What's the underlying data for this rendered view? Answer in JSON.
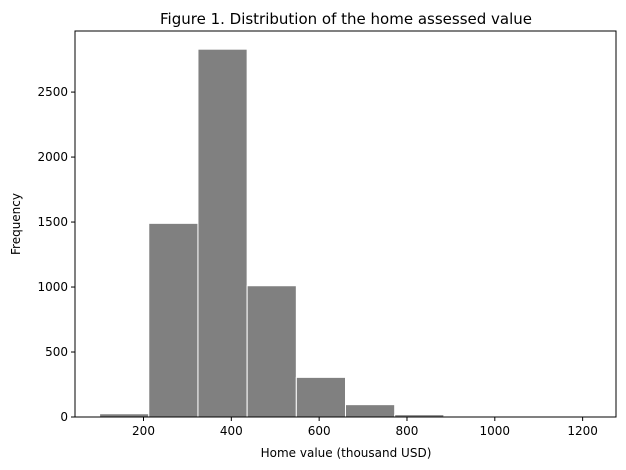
{
  "chart_data": {
    "type": "bar",
    "subtype": "histogram",
    "title": "Figure 1. Distribution of the home assessed value",
    "xlabel": "Home value (thousand USD)",
    "ylabel": "Frequency",
    "bins": [
      {
        "start": 100,
        "end": 212,
        "count": 25
      },
      {
        "start": 212,
        "end": 324,
        "count": 1490
      },
      {
        "start": 324,
        "end": 436,
        "count": 2830
      },
      {
        "start": 436,
        "end": 548,
        "count": 1010
      },
      {
        "start": 548,
        "end": 660,
        "count": 305
      },
      {
        "start": 660,
        "end": 772,
        "count": 95
      },
      {
        "start": 772,
        "end": 884,
        "count": 18
      },
      {
        "start": 884,
        "end": 996,
        "count": 2
      },
      {
        "start": 996,
        "end": 1108,
        "count": 1
      },
      {
        "start": 1108,
        "end": 1220,
        "count": 1
      }
    ],
    "xlim": [
      44,
      1276
    ],
    "ylim": [
      0,
      2970
    ],
    "xticks": [
      200,
      400,
      600,
      800,
      1000,
      1200
    ],
    "yticks": [
      0,
      500,
      1000,
      1500,
      2000,
      2500
    ],
    "bar_color": "#808080",
    "edge_color": "#ffffff",
    "grid": false,
    "legend": "none"
  }
}
